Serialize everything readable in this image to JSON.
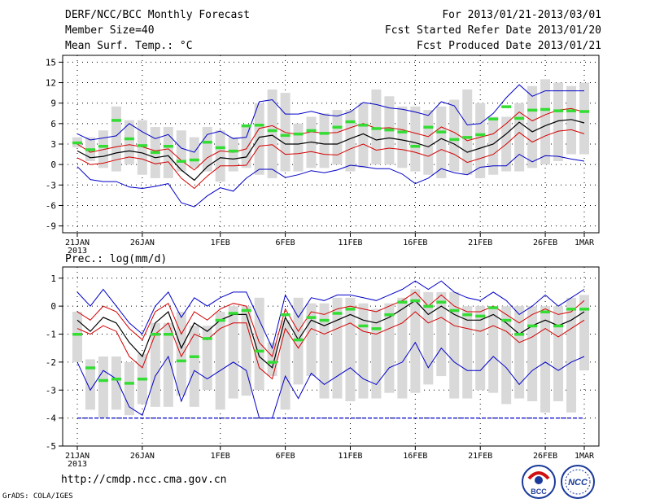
{
  "header": {
    "title": "DERF/NCC/BCC Monthly Forecast",
    "member_size": "Member Size=40",
    "variable": "Mean Surf. Temp.: °C",
    "period": "For 2013/01/21-2013/03/01",
    "started": "Fcst Started Refer Date 2013/01/20",
    "produced": "Fcst Produced Date 2013/01/21"
  },
  "footer": {
    "url": "http://cmdp.ncc.cma.gov.cn",
    "credit": "GrADS: COLA/IGES"
  },
  "logos": {
    "bcc": "BCC",
    "ncc": "NCC"
  },
  "colors": {
    "mean": "#000000",
    "quantile": "#d40000",
    "extreme": "#0000c8",
    "box": "#d9d9d9",
    "median": "#33dd33"
  },
  "chart_data": [
    {
      "type": "line",
      "title": "Mean Surf. Temp.: °C",
      "days": 40,
      "ylim": [
        -10,
        16
      ],
      "yticks": [
        15,
        12,
        9,
        6,
        3,
        0,
        -3,
        -6,
        -9
      ],
      "xticks": [
        {
          "day": 0,
          "label": "21JAN",
          "sub": "2013"
        },
        {
          "day": 5,
          "label": "26JAN"
        },
        {
          "day": 11,
          "label": "1FEB"
        },
        {
          "day": 16,
          "label": "6FEB"
        },
        {
          "day": 21,
          "label": "11FEB"
        },
        {
          "day": 26,
          "label": "16FEB"
        },
        {
          "day": 31,
          "label": "21FEB"
        },
        {
          "day": 36,
          "label": "26FEB"
        },
        {
          "day": 39,
          "label": "1MAR"
        }
      ],
      "boxes_lo": [
        2.5,
        0.5,
        -0.5,
        -1,
        0,
        -1.5,
        -2,
        -2,
        -1,
        -0.5,
        -1,
        -2.5,
        -1,
        -0.5,
        -1.5,
        -2,
        -1,
        -1,
        -0.5,
        -0.5,
        0,
        -1,
        -0.5,
        0,
        0,
        -0.5,
        -1,
        -1.5,
        -2,
        -1,
        -1.5,
        -2,
        -1.5,
        -1,
        -1,
        -0.5,
        0,
        0.5,
        1.5,
        1.5
      ],
      "boxes_hi": [
        4,
        4,
        5,
        8.5,
        6.5,
        6.5,
        5.5,
        5.5,
        5,
        4,
        5.5,
        5,
        4,
        5.5,
        9,
        11,
        10.5,
        6,
        7,
        7.5,
        8,
        8,
        9,
        11,
        10,
        8.5,
        8.5,
        8,
        8.5,
        9.5,
        11,
        9,
        7,
        7,
        9,
        11.5,
        12.5,
        12,
        11.5,
        12
      ],
      "median": [
        3.2,
        2.2,
        2.7,
        6.5,
        3.8,
        2.8,
        1.8,
        2.7,
        0.5,
        0.7,
        3.3,
        2.5,
        2,
        5.7,
        5.8,
        5,
        4.3,
        4.5,
        5,
        4.6,
        5.5,
        6.3,
        5.8,
        5.3,
        5.1,
        4.8,
        2.7,
        5.5,
        4.8,
        3.7,
        4,
        4.4,
        6.7,
        8.5,
        6.8,
        8,
        8.1,
        7.9,
        7.9,
        7.8
      ],
      "mean": [
        2,
        1,
        1.2,
        1.7,
        2,
        1.7,
        1,
        1.3,
        -0.8,
        -2.3,
        -0.3,
        1,
        0.8,
        1.1,
        4,
        4.3,
        3,
        3,
        3.3,
        3,
        3,
        3.8,
        4.5,
        3.6,
        3.9,
        3.6,
        3.2,
        2.6,
        3.8,
        3,
        1.8,
        2.4,
        3,
        4.5,
        6.2,
        4.8,
        5.7,
        6.4,
        6.6,
        6.1
      ],
      "upper_q": [
        3,
        1.8,
        2.2,
        2.6,
        2.9,
        2.6,
        2,
        2.3,
        0.6,
        -0.8,
        1,
        2,
        1.8,
        2.3,
        5.3,
        5.7,
        4.7,
        4.4,
        4.8,
        4.6,
        4.7,
        5.4,
        6,
        5.3,
        5.4,
        5.1,
        4.6,
        4.1,
        5.5,
        4.7,
        3.5,
        4,
        4.5,
        6,
        7.7,
        6.4,
        7.3,
        8,
        8.2,
        7.7
      ],
      "lower_q": [
        1,
        0,
        0.2,
        0.7,
        1.1,
        0.8,
        0.1,
        0.4,
        -2,
        -3.5,
        -1.7,
        -0.2,
        -0.2,
        -0.1,
        2.7,
        2.9,
        1.5,
        1.6,
        1.9,
        1.5,
        1.4,
        2.3,
        3,
        2.1,
        2.4,
        2.2,
        1.8,
        1.2,
        2.2,
        1.5,
        0.3,
        0.9,
        1.5,
        3,
        4.7,
        3.3,
        4.2,
        4.9,
        5.1,
        4.5
      ],
      "maxline": [
        4.5,
        3.6,
        3.9,
        4.2,
        6,
        4.8,
        3.8,
        4.4,
        2.4,
        1.8,
        4.4,
        4.9,
        3.8,
        4,
        9.2,
        9.5,
        7.4,
        7.4,
        7.8,
        7.3,
        7.1,
        7.7,
        9.1,
        8.8,
        8.3,
        8.1,
        7.7,
        7.2,
        9.2,
        8.6,
        5.8,
        6,
        7.5,
        9.8,
        11.7,
        10,
        10.8,
        10.8,
        10.8,
        10.8
      ],
      "minline": [
        -0.3,
        -2.2,
        -2.5,
        -2.5,
        -3.3,
        -3.5,
        -3.2,
        -2.8,
        -5.6,
        -6.2,
        -4.6,
        -3.4,
        -3.9,
        -2,
        -0.7,
        -0.7,
        -1.9,
        -1.5,
        -0.9,
        -1.2,
        -0.8,
        -0.1,
        -0.3,
        -0.6,
        -0.6,
        -1.4,
        -2.8,
        -2,
        -0.6,
        -1.2,
        -1.5,
        -0.4,
        -0.2,
        -0.2,
        1.5,
        0.4,
        1.3,
        1.2,
        0.8,
        0.5
      ]
    },
    {
      "type": "line",
      "title": "Prec.: log(mm/d)",
      "days": 40,
      "ylim": [
        -5,
        1.4
      ],
      "yticks": [
        1,
        0,
        -1,
        -2,
        -3,
        -4,
        -5
      ],
      "xticks": [
        {
          "day": 0,
          "label": "21JAN",
          "sub": "2013"
        },
        {
          "day": 5,
          "label": "26JAN"
        },
        {
          "day": 11,
          "label": "1FEB"
        },
        {
          "day": 16,
          "label": "6FEB"
        },
        {
          "day": 21,
          "label": "11FEB"
        },
        {
          "day": 26,
          "label": "16FEB"
        },
        {
          "day": 31,
          "label": "21FEB"
        },
        {
          "day": 36,
          "label": "26FEB"
        },
        {
          "day": 39,
          "label": "1MAR"
        }
      ],
      "floor": -4,
      "boxes_lo": [
        -2,
        -3.7,
        -4,
        -3.7,
        -3.9,
        -3.5,
        -3.6,
        -3.6,
        -3.2,
        -3.6,
        -3,
        -3.7,
        -3.3,
        -3.2,
        -3,
        -2.5,
        -3.7,
        -2.8,
        -2.5,
        -3.3,
        -3.3,
        -3.4,
        -3.3,
        -3.3,
        -3.1,
        -3.3,
        -3.1,
        -2.8,
        -2.5,
        -3.3,
        -3.3,
        -3,
        -3.1,
        -3.5,
        -3.3,
        -3.4,
        -3.8,
        -3.4,
        -3.8,
        -2.3
      ],
      "boxes_hi": [
        -0.2,
        -1.9,
        -1.8,
        -1.8,
        -2,
        -1.7,
        -0.6,
        -0.6,
        -0.2,
        -0.7,
        -0.7,
        -0.2,
        0,
        0,
        0.3,
        -1.3,
        -0.5,
        0.3,
        0.1,
        0.1,
        0.3,
        0.3,
        0.1,
        -0.1,
        0.1,
        0.3,
        0.6,
        0.5,
        0.5,
        0.5,
        0,
        0,
        0,
        0,
        0,
        0,
        0,
        0,
        0.3,
        0.4
      ],
      "median": [
        -1,
        -2.2,
        -2.65,
        -2.6,
        -2.75,
        -2.6,
        -1,
        -1,
        -1.95,
        -1.8,
        -1.15,
        -0.5,
        -0.25,
        -0.15,
        -1.6,
        -2,
        -0.3,
        -1.2,
        -0.4,
        -0.5,
        -0.25,
        -0.1,
        -0.7,
        -0.8,
        -0.3,
        0.15,
        0.2,
        0,
        0.15,
        -0.15,
        -0.3,
        -0.35,
        -0.05,
        -0.5,
        -1,
        -0.7,
        -0.2,
        -0.7,
        -0.1,
        -0.1
      ],
      "mean": [
        -0.5,
        -0.9,
        -0.4,
        -0.6,
        -1.3,
        -1.8,
        -0.6,
        -0.2,
        -1.5,
        -0.6,
        -0.9,
        -0.5,
        -0.3,
        -0.3,
        -1.8,
        -2.2,
        -0.4,
        -1.2,
        -0.5,
        -0.7,
        -0.5,
        -0.3,
        -0.5,
        -0.6,
        -0.4,
        -0.1,
        0.2,
        -0.3,
        0,
        -0.3,
        -0.5,
        -0.5,
        -0.3,
        -0.6,
        -1,
        -0.7,
        -0.5,
        -0.7,
        -0.5,
        -0.2
      ],
      "upper_q": [
        -0.2,
        -0.5,
        0,
        -0.2,
        -0.8,
        -1.2,
        -0.2,
        0.1,
        -1,
        -0.2,
        -0.5,
        -0.1,
        0.1,
        0,
        -1.3,
        -1.8,
        -0.1,
        -0.9,
        -0.2,
        -0.3,
        -0.1,
        0,
        -0.1,
        -0.2,
        0,
        0.2,
        0.5,
        0,
        0.4,
        0,
        -0.2,
        -0.2,
        0,
        -0.3,
        -0.6,
        -0.3,
        -0.1,
        -0.3,
        -0.2,
        0.2
      ],
      "lower_q": [
        -0.8,
        -1,
        -0.7,
        -0.9,
        -1.8,
        -2.2,
        -1,
        -0.6,
        -1.8,
        -1,
        -1.2,
        -0.8,
        -0.6,
        -0.6,
        -2.2,
        -2.6,
        -0.8,
        -1.5,
        -0.8,
        -1,
        -0.8,
        -0.6,
        -0.9,
        -1,
        -0.8,
        -0.6,
        -0.2,
        -0.6,
        -0.4,
        -0.7,
        -0.8,
        -0.9,
        -0.7,
        -0.9,
        -1.3,
        -1.1,
        -0.8,
        -1.1,
        -0.8,
        -0.5
      ],
      "maxline": [
        0.5,
        0,
        0.6,
        0,
        -0.6,
        -1,
        0,
        0.5,
        -0.4,
        0.3,
        0,
        0.3,
        0.5,
        0.5,
        -0.5,
        -1.5,
        0.4,
        -0.4,
        0.3,
        0.2,
        0.4,
        0.4,
        0.3,
        0.2,
        0.4,
        0.6,
        0.9,
        0.6,
        0.9,
        0.5,
        0.3,
        0.2,
        0.5,
        0.2,
        -0.3,
        0,
        0.4,
        0,
        0.3,
        0.6
      ],
      "minline": [
        -2,
        -3,
        -2.3,
        -2.6,
        -3.6,
        -3.9,
        -2.5,
        -1.8,
        -3.4,
        -2.3,
        -2.6,
        -2.3,
        -2,
        -2.3,
        -4,
        -4,
        -2.5,
        -3.3,
        -2.4,
        -2.8,
        -2.5,
        -2.2,
        -2.6,
        -2.8,
        -2.2,
        -2,
        -1.3,
        -2.2,
        -1.5,
        -2,
        -2.3,
        -2.3,
        -1.8,
        -2.2,
        -2.8,
        -2.3,
        -2,
        -2.3,
        -2,
        -1.8
      ]
    }
  ]
}
